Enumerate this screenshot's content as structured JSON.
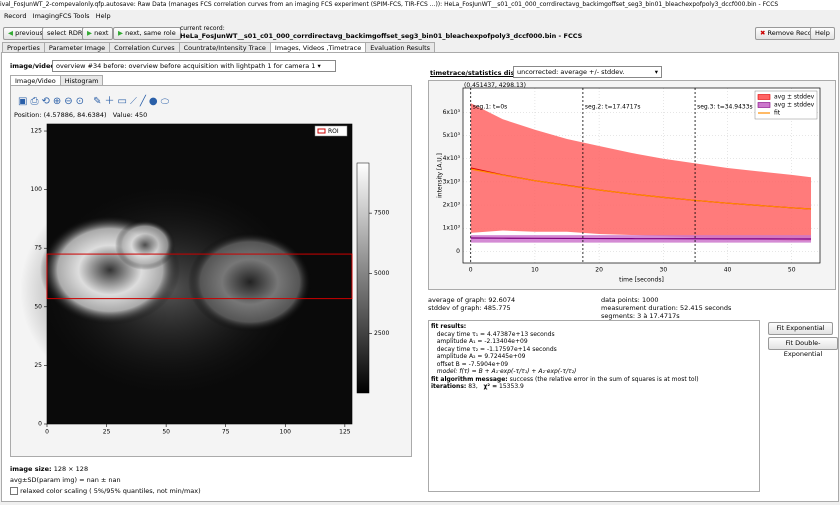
{
  "window_title": "ival_FosJunWT_2-compevalonly.qfp.autosave: Raw Data (manages FCS correlation curves from an imaging FCS experiment (SPIM-FCS, TIR-FCS ...)): HeLa_FosJunWT__s01_c01_000_corrdirectavg_backimgoffset_seg3_bin01_bleachexpofpoly3_dccf000.bin - FCCS",
  "menu": [
    "Record",
    "ImagingFCS Tools",
    "Help"
  ],
  "toolbar": {
    "previous": "previous",
    "select": "select RDR",
    "next": "next",
    "next_same": "next, same role",
    "current_label": "current record:",
    "current_record": "HeLa_FosJunWT__s01_c01_000_corrdirectavg_backimgoffset_seg3_bin01_bleachexpofpoly3_dccf000.bin - FCCS",
    "remove": "Remove Record",
    "help": "Help"
  },
  "tabs": [
    "Properties",
    "Parameter Image",
    "Correlation Curves",
    "Countrate/Intensity Trace",
    "Images, Videos ,Timetrace",
    "Evaluation Results"
  ],
  "image_panel": {
    "label": "image/video:",
    "selection": "overview #34 before: overview before acquisition with lightpath 1 for camera 1",
    "subtabs": [
      "Image/Video",
      "Histogram"
    ],
    "position_label": "Position:",
    "position": "(4.57886, 84.6384)",
    "value_label": "Value:",
    "value": 450,
    "roi_legend": "ROI",
    "xlim": [
      0,
      128
    ],
    "ylim": [
      0,
      128
    ],
    "xticks": [
      0,
      25,
      50,
      75,
      100,
      125
    ],
    "yticks": [
      0,
      25,
      50,
      75,
      100,
      125
    ],
    "roi": {
      "x": [
        0,
        128
      ],
      "y": [
        53.5,
        72.5
      ]
    },
    "colorbar": {
      "lim": [
        40,
        9580
      ],
      "ticks": [
        2500,
        5000,
        7500
      ]
    },
    "image_size_label": "image size:",
    "image_size": "128 × 128",
    "stats": "avg±SD(param img) = nan ± nan",
    "checkbox": "relaxed color scaling ( 5%/95% quantiles, not min/max)"
  },
  "chart_data": {
    "type": "line",
    "title": "timetrace/statistics display:",
    "display_mode": "uncorrected: average +/- stddev.",
    "cursor": "(0.451437, 4298.13)",
    "x_label": "time [seconds]",
    "y_label": "intensity [A.U.]",
    "x": [
      0,
      5,
      10,
      15,
      20,
      25,
      30,
      35,
      40,
      45,
      50,
      53
    ],
    "series": [
      {
        "name": "avg ± stddev",
        "color": "#e00000",
        "fill": "#ff6464",
        "values": [
          3600,
          3300,
          3050,
          2850,
          2650,
          2480,
          2330,
          2200,
          2080,
          1980,
          1880,
          1830
        ],
        "upper": [
          6400,
          5700,
          5250,
          4850,
          4550,
          4250,
          4000,
          3800,
          3600,
          3450,
          3300,
          3200
        ],
        "lower": [
          800,
          900,
          850,
          850,
          750,
          710,
          660,
          600,
          560,
          510,
          460,
          460
        ]
      },
      {
        "name": "avg ± stddev",
        "color": "#800080",
        "fill": "#cc77cc",
        "values": [
          580,
          570,
          565,
          560,
          555,
          550,
          548,
          545,
          542,
          540,
          538,
          536
        ],
        "upper": [
          700,
          700,
          700,
          700,
          700,
          700,
          700,
          700,
          700,
          700,
          700,
          700
        ],
        "lower": [
          380,
          380,
          380,
          380,
          380,
          380,
          380,
          380,
          380,
          380,
          380,
          380
        ]
      },
      {
        "name": "fit",
        "color": "#ff8c00",
        "values": [
          3550,
          3290,
          3050,
          2840,
          2650,
          2480,
          2330,
          2200,
          2080,
          1980,
          1880,
          1830
        ]
      }
    ],
    "xlim": [
      -1.2,
      54.4
    ],
    "ylim": [
      -500,
      7050
    ],
    "xticks": [
      0,
      10,
      20,
      30,
      40,
      50
    ],
    "yticks": [
      0,
      {
        "value": 1000,
        "label": "1x10³"
      },
      {
        "value": 2000,
        "label": "2x10³"
      },
      {
        "value": 3000,
        "label": "3x10³"
      },
      {
        "value": 4000,
        "label": "4x10³"
      },
      {
        "value": 5000,
        "label": "5x10³"
      },
      {
        "value": 6000,
        "label": "6x10³"
      }
    ],
    "grid": true,
    "legend": "top-right",
    "segments": {
      "starts": [
        0,
        17.4717,
        34.9433
      ],
      "labels": [
        "seg.1: t=0s",
        "seg.2: t=17.4717s",
        "seg.3: t=34.9433s"
      ]
    }
  },
  "statistics": {
    "average_label": "average of graph:",
    "average": 92.6074,
    "stddev_label": "stddev of graph:",
    "stddev": 485.775,
    "points_label": "data points:",
    "points": 1000,
    "duration_label": "measurement duration:",
    "duration": "52.415 seconds",
    "segments_label": "segments:",
    "segments": "3 à 17.4717s"
  },
  "fit": {
    "heading": "fit results:",
    "lines": [
      "decay time τ₁ = 4.47387e+13 seconds",
      "amplitude A₁ = -2.13404e+09",
      "decay time τ₂ = -1.17597e+14 seconds",
      "amplitude A₂ = 9.72445e+09",
      "offset B = -7.5904e+09",
      "model: f(τ) = B + A₁·exp(-τ/τ₁) + A₂·exp(-τ/τ₂)"
    ],
    "message_label": "fit algorithm message:",
    "message": "success (the relative error in the sum of squares is at most tol)",
    "iterations_label": "iterations:",
    "iterations": "83,",
    "chi_label": "χ² =",
    "chi": 15353.9
  },
  "buttons": [
    "Fit Exponential",
    "Fit Double- Exponential"
  ]
}
